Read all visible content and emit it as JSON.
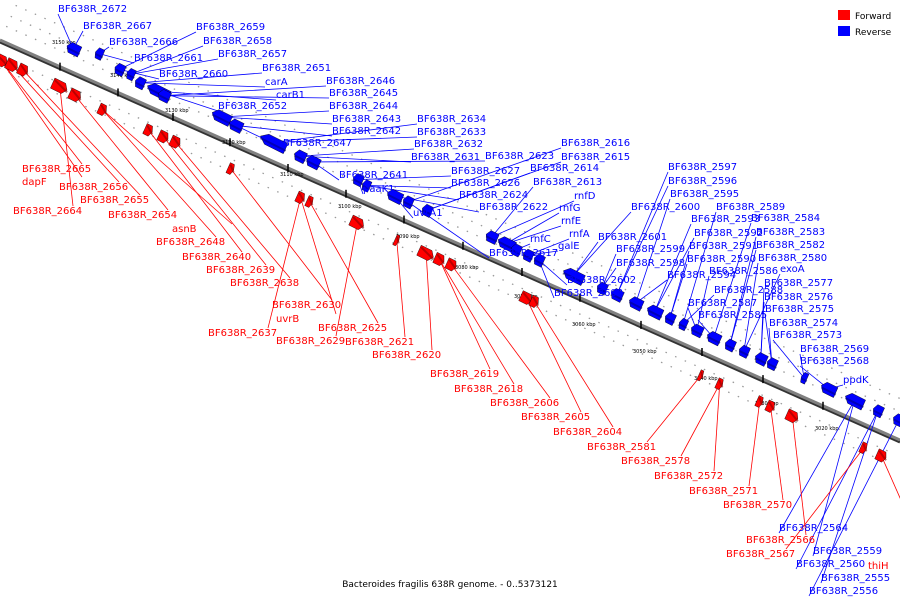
{
  "caption": "Bacteroides fragilis 638R genome. - 0..5373121",
  "legend": [
    {
      "label": "Forward",
      "color": "#ff0000"
    },
    {
      "label": "Reverse",
      "color": "#0000ff"
    }
  ],
  "colors": {
    "forward": "#ff0000",
    "reverse": "#0000ff",
    "axis": "#808080"
  },
  "scale_ticks": [
    "3150 kbp",
    "3140 kbp",
    "3130 kbp",
    "3120 kbp",
    "3110 kbp",
    "3100 kbp",
    "3090 kbp",
    "3080 kbp",
    "3070 kbp",
    "3060 kbp",
    "3050 kbp",
    "3040 kbp",
    "3030 kbp",
    "3020 kbp"
  ],
  "reverse_genes": [
    "BF638R_2672",
    "BF638R_2667",
    "BF638R_2666",
    "BF638R_2661",
    "BF638R_2660",
    "BF638R_2659",
    "BF638R_2658",
    "BF638R_2657",
    "BF638R_2651",
    "carA",
    "carB1",
    "BF638R_2652",
    "BF638R_2646",
    "BF638R_2645",
    "BF638R_2644",
    "BF638R_2643",
    "BF638R_2642",
    "BF638R_2647",
    "BF638R_2634",
    "BF638R_2633",
    "BF638R_2632",
    "BF638R_2631",
    "BF638R_2623",
    "BF638R_2641",
    "paaK1",
    "BF638R_2627",
    "BF638R_2626",
    "BF638R_2624",
    "BF638R_2622",
    "uvrA1",
    "BF638R_2617",
    "BF638R_2616",
    "BF638R_2615",
    "BF638R_2614",
    "BF638R_2613",
    "rnfD",
    "rnfG",
    "rnfE",
    "rnfC",
    "rnfA",
    "galE",
    "BF638R_2602",
    "BF638R_2603",
    "BF638R_2601",
    "BF638R_2600",
    "BF638R_2599",
    "BF638R_2598",
    "BF638R_2597",
    "BF638R_2596",
    "BF638R_2595",
    "BF638R_2594",
    "BF638R_2593",
    "BF638R_2592",
    "BF638R_2591",
    "BF638R_2590",
    "BF638R_2589",
    "BF638R_2588",
    "BF638R_2587",
    "BF638R_2586",
    "BF638R_2585",
    "BF638R_2584",
    "BF638R_2583",
    "BF638R_2582",
    "BF638R_2580",
    "exoA",
    "BF638R_2577",
    "BF638R_2576",
    "BF638R_2575",
    "BF638R_2574",
    "BF638R_2573",
    "BF638R_2569",
    "BF638R_2568",
    "ppdK",
    "BF638R_2564",
    "BF638R_2559",
    "BF638R_2560",
    "BF638R_2555",
    "BF638R_2556"
  ],
  "forward_genes": [
    "BF638R_2665",
    "dapF",
    "BF638R_2656",
    "BF638R_2655",
    "BF638R_2664",
    "BF638R_2654",
    "asnB",
    "BF638R_2648",
    "BF638R_2640",
    "BF638R_2639",
    "BF638R_2638",
    "BF638R_2630",
    "uvrB",
    "BF638R_2637",
    "BF638R_2625",
    "BF638R_2629",
    "BF638R_2621",
    "BF638R_2620",
    "BF638R_2619",
    "BF638R_2618",
    "BF638R_2606",
    "BF638R_2605",
    "BF638R_2604",
    "BF638R_2581",
    "BF638R_2578",
    "BF638R_2572",
    "BF638R_2571",
    "BF638R_2570",
    "BF638R_2566",
    "BF638R_2567",
    "thiH"
  ]
}
